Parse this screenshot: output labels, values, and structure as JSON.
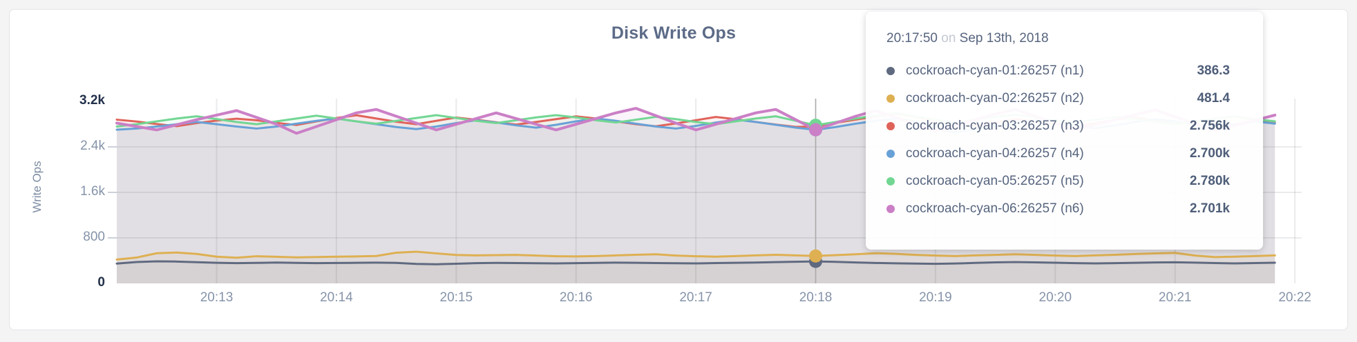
{
  "tooltip": {
    "time": "20:17:50",
    "connector": "on",
    "date": "Sep 13th, 2018"
  },
  "chart_data": {
    "type": "line",
    "title": "Disk Write Ops",
    "xlabel": "",
    "ylabel": "Write Ops",
    "ylim": [
      0,
      3200
    ],
    "grid": true,
    "legend_position": "none",
    "area_fill": true,
    "y_ticks": [
      {
        "label": "0",
        "value": 0,
        "emphasis": true
      },
      {
        "label": "800",
        "value": 800,
        "emphasis": false
      },
      {
        "label": "1.6k",
        "value": 1600,
        "emphasis": false
      },
      {
        "label": "2.4k",
        "value": 2400,
        "emphasis": false
      },
      {
        "label": "3.2k",
        "value": 3200,
        "emphasis": true
      }
    ],
    "x_ticks": [
      "20:13",
      "20:14",
      "20:15",
      "20:16",
      "20:17",
      "20:18",
      "20:19",
      "20:20",
      "20:21",
      "20:22"
    ],
    "x_start": "20:12:10",
    "x_step_seconds": 10,
    "hover": {
      "index": 35,
      "time_label": "20:17:50"
    },
    "series": [
      {
        "name": "cockroach-cyan-01:26257 (n1)",
        "color": "#5f6a80",
        "hover_value_label": "386.3",
        "values": [
          348,
          376,
          388,
          384,
          372,
          362,
          356,
          360,
          366,
          361,
          356,
          359,
          362,
          365,
          361,
          342,
          336,
          346,
          356,
          360,
          357,
          354,
          352,
          356,
          361,
          365,
          362,
          357,
          354,
          352,
          357,
          362,
          366,
          374,
          381,
          386.3,
          379,
          368,
          359,
          353,
          348,
          344,
          350,
          360,
          370,
          375,
          369,
          363,
          356,
          351,
          356,
          362,
          368,
          371,
          365,
          357,
          352,
          358,
          364
        ]
      },
      {
        "name": "cockroach-cyan-02:26257 (n2)",
        "color": "#deb052",
        "hover_value_label": "481.4",
        "values": [
          420,
          455,
          530,
          542,
          518,
          470,
          452,
          478,
          468,
          458,
          464,
          470,
          474,
          482,
          540,
          558,
          528,
          500,
          492,
          497,
          501,
          489,
          478,
          474,
          481,
          492,
          503,
          512,
          489,
          478,
          470,
          481,
          492,
          503,
          492,
          481.4,
          497,
          512,
          531,
          519,
          501,
          489,
          481,
          492,
          501,
          512,
          501,
          489,
          481,
          492,
          503,
          517,
          528,
          536,
          489,
          462,
          470,
          481,
          492
        ]
      },
      {
        "name": "cockroach-cyan-03:26257 (n3)",
        "color": "#e0635a",
        "hover_value_label": "2.756k",
        "values": [
          2878,
          2846,
          2802,
          2764,
          2818,
          2862,
          2896,
          2868,
          2822,
          2784,
          2848,
          2908,
          2956,
          2898,
          2842,
          2798,
          2858,
          2916,
          2878,
          2832,
          2792,
          2838,
          2888,
          2936,
          2898,
          2848,
          2798,
          2762,
          2812,
          2868,
          2926,
          2886,
          2838,
          2792,
          2752,
          2756,
          2822,
          2878,
          2936,
          2986,
          2928,
          2868,
          2812,
          2768,
          2828,
          2888,
          2848,
          2798,
          2758,
          2818,
          2878,
          2918,
          2858,
          2798,
          2838,
          2898,
          2936,
          2878,
          2822
        ]
      },
      {
        "name": "cockroach-cyan-04:26257 (n4)",
        "color": "#68a1d7",
        "hover_value_label": "2.700k",
        "values": [
          2702,
          2722,
          2758,
          2798,
          2838,
          2798,
          2758,
          2722,
          2758,
          2808,
          2858,
          2898,
          2848,
          2798,
          2748,
          2712,
          2758,
          2818,
          2868,
          2828,
          2778,
          2738,
          2788,
          2848,
          2898,
          2858,
          2808,
          2758,
          2722,
          2768,
          2828,
          2878,
          2838,
          2788,
          2738,
          2700,
          2748,
          2808,
          2858,
          2898,
          2848,
          2698,
          2658,
          2708,
          2768,
          2828,
          2868,
          2818,
          2768,
          2728,
          2778,
          2838,
          2888,
          2848,
          2798,
          2758,
          2798,
          2848,
          2808
        ]
      },
      {
        "name": "cockroach-cyan-05:26257 (n5)",
        "color": "#72d693",
        "hover_value_label": "2.780k",
        "values": [
          2758,
          2798,
          2848,
          2898,
          2938,
          2888,
          2838,
          2798,
          2848,
          2898,
          2948,
          2898,
          2848,
          2808,
          2858,
          2908,
          2958,
          2908,
          2858,
          2818,
          2868,
          2918,
          2958,
          2918,
          2868,
          2828,
          2878,
          2928,
          2888,
          2838,
          2798,
          2848,
          2898,
          2938,
          2858,
          2780,
          2838,
          2898,
          2948,
          2998,
          2938,
          2878,
          2828,
          2878,
          2928,
          2968,
          2918,
          2868,
          2828,
          2878,
          2928,
          2888,
          2838,
          2798,
          2848,
          2898,
          2938,
          2888,
          2848
        ]
      },
      {
        "name": "cockroach-cyan-06:26257 (n6)",
        "color": "#cb7fc6",
        "hover_value_label": "2.701k",
        "values": [
          2818,
          2758,
          2698,
          2788,
          2878,
          2958,
          3038,
          2918,
          2798,
          2638,
          2758,
          2878,
          2998,
          3058,
          2938,
          2818,
          2698,
          2798,
          2898,
          2998,
          2898,
          2798,
          2698,
          2798,
          2898,
          2998,
          3078,
          2948,
          2818,
          2698,
          2798,
          2898,
          2998,
          3058,
          2878,
          2701,
          2818,
          2938,
          3038,
          2918,
          2798,
          2678,
          2778,
          2878,
          2978,
          3058,
          2938,
          2818,
          2698,
          2788,
          2878,
          2968,
          3048,
          2928,
          2808,
          2688,
          2778,
          2868,
          2958
        ]
      }
    ]
  }
}
